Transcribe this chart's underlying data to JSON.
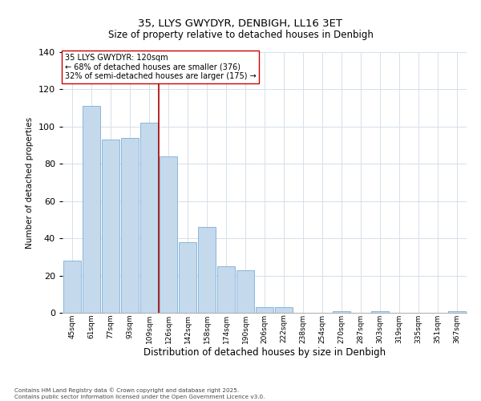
{
  "title": "35, LLYS GWYDYR, DENBIGH, LL16 3ET",
  "subtitle": "Size of property relative to detached houses in Denbigh",
  "xlabel": "Distribution of detached houses by size in Denbigh",
  "ylabel": "Number of detached properties",
  "bar_labels": [
    "45sqm",
    "61sqm",
    "77sqm",
    "93sqm",
    "109sqm",
    "126sqm",
    "142sqm",
    "158sqm",
    "174sqm",
    "190sqm",
    "206sqm",
    "222sqm",
    "238sqm",
    "254sqm",
    "270sqm",
    "287sqm",
    "303sqm",
    "319sqm",
    "335sqm",
    "351sqm",
    "367sqm"
  ],
  "bar_values": [
    28,
    111,
    93,
    94,
    102,
    84,
    38,
    46,
    25,
    23,
    3,
    3,
    0,
    0,
    1,
    0,
    1,
    0,
    0,
    0,
    1
  ],
  "bar_color": "#c5d9ed",
  "bar_edge_color": "#7aafd4",
  "ylim": [
    0,
    140
  ],
  "yticks": [
    0,
    20,
    40,
    60,
    80,
    100,
    120,
    140
  ],
  "vline_color": "#aa0000",
  "annotation_title": "35 LLYS GWYDYR: 120sqm",
  "annotation_line1": "← 68% of detached houses are smaller (376)",
  "annotation_line2": "32% of semi-detached houses are larger (175) →",
  "footer1": "Contains HM Land Registry data © Crown copyright and database right 2025.",
  "footer2": "Contains public sector information licensed under the Open Government Licence v3.0.",
  "grid_color": "#d5e0ea"
}
